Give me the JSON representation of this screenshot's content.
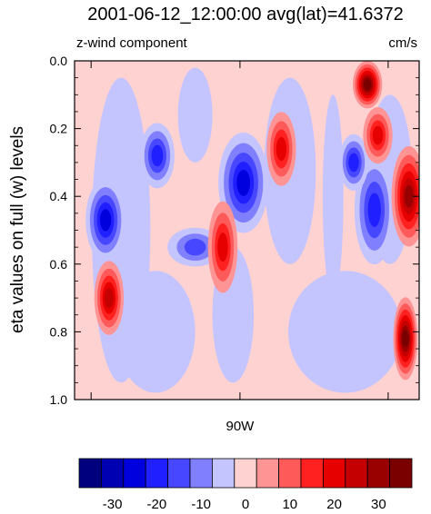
{
  "chart_data": {
    "type": "heatmap",
    "title": "2001-06-12_12:00:00  avg(lat)=41.6372",
    "subtitle_left": "z-wind component",
    "units": "cm/s",
    "ylabel": "eta values on full (w) levels",
    "x_tick_labels": [
      "90W"
    ],
    "y_tick_labels": [
      "0.0",
      "0.2",
      "0.4",
      "0.6",
      "0.8",
      "1.0"
    ],
    "y_axis_reversed": true,
    "colorbar": {
      "levels": [
        -35,
        -30,
        -25,
        -20,
        -15,
        -10,
        -5,
        0,
        5,
        10,
        15,
        20,
        25,
        30,
        35
      ],
      "tick_labels": [
        "-30",
        "-20",
        "-10",
        "0",
        "10",
        "20",
        "30"
      ],
      "colors": [
        "#00007f",
        "#0000b3",
        "#0000df",
        "#1f1fff",
        "#4747ff",
        "#8080ff",
        "#c4c4ff",
        "#ffd2d2",
        "#ff9494",
        "#ff5a5a",
        "#ff2020",
        "#e60000",
        "#c40000",
        "#990000",
        "#7a0000"
      ]
    },
    "background_fill_color": "#ffd2d2",
    "features": [
      {
        "kind": "negative",
        "label": "cell-neg-1",
        "level": -25
      },
      {
        "kind": "negative",
        "label": "cell-neg-2",
        "level": -20
      },
      {
        "kind": "negative",
        "label": "cell-neg-3",
        "level": -25
      },
      {
        "kind": "negative",
        "label": "cell-neg-4",
        "level": -20
      },
      {
        "kind": "negative",
        "label": "cell-neg-5",
        "level": -15
      },
      {
        "kind": "negative",
        "label": "cell-neg-6",
        "level": -20
      },
      {
        "kind": "positive",
        "label": "cell-pos-1",
        "level": 25
      },
      {
        "kind": "positive",
        "label": "cell-pos-2",
        "level": 20
      },
      {
        "kind": "positive",
        "label": "cell-pos-3",
        "level": 20
      },
      {
        "kind": "positive",
        "label": "cell-pos-4",
        "level": 30
      },
      {
        "kind": "positive",
        "label": "cell-pos-5",
        "level": 35
      },
      {
        "kind": "positive",
        "label": "cell-pos-6",
        "level": 35
      },
      {
        "kind": "positive",
        "label": "cell-pos-7",
        "level": 20
      }
    ]
  }
}
